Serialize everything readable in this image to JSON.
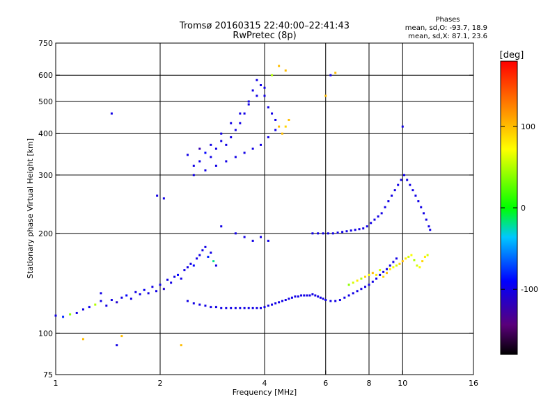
{
  "chart_data": {
    "type": "scatter",
    "title": "Tromsø 20160315 22:40:00–22:41:43",
    "subtitle": "RwPretec (8p)",
    "xlabel": "Frequency [MHz]",
    "ylabel": "Stationary phase Virtual Height [km]",
    "x_scale": "log",
    "y_scale": "log",
    "xlim": [
      1,
      16
    ],
    "ylim": [
      75,
      750
    ],
    "x_ticks": [
      1,
      2,
      4,
      6,
      8,
      10,
      16
    ],
    "x_tick_labels": [
      "1",
      "2",
      "4",
      "6",
      "8",
      "10",
      "16"
    ],
    "y_ticks": [
      75,
      100,
      200,
      300,
      400,
      500,
      600,
      750
    ],
    "y_tick_labels": [
      "75",
      "100",
      "200",
      "300",
      "400",
      "500",
      "600",
      "750"
    ],
    "grid_x": [
      2,
      4,
      6,
      8,
      10
    ],
    "grid_y": [
      100,
      200,
      300,
      400,
      500,
      600
    ],
    "legend": {
      "heading": "Phases",
      "lines": [
        "mean, sd,O: -93.7, 18.9",
        "mean, sd,X:  87.1, 23.6"
      ]
    },
    "colorbar": {
      "label": "[deg]",
      "min": -180,
      "max": 180,
      "ticks": [
        100,
        0,
        -100
      ],
      "tick_labels": [
        "100",
        "0",
        "-100"
      ],
      "colormap": "rainbow (black-purple-blue-cyan-green-yellow-red)"
    },
    "series": [
      {
        "trace": "low-frequency E/F1 trace",
        "points": [
          [
            1.0,
            113,
            -100
          ],
          [
            1.05,
            112,
            -80
          ],
          [
            1.1,
            114,
            40
          ],
          [
            1.15,
            115,
            -100
          ],
          [
            1.2,
            118,
            -100
          ],
          [
            1.25,
            120,
            -95
          ],
          [
            1.3,
            122,
            50
          ],
          [
            1.35,
            125,
            -100
          ],
          [
            1.4,
            121,
            -100
          ],
          [
            1.45,
            126,
            -100
          ],
          [
            1.5,
            124,
            -110
          ],
          [
            1.55,
            128,
            -100
          ],
          [
            1.6,
            130,
            -90
          ],
          [
            1.65,
            127,
            -100
          ],
          [
            1.7,
            133,
            -100
          ],
          [
            1.75,
            131,
            -100
          ],
          [
            1.8,
            135,
            -95
          ],
          [
            1.85,
            132,
            -100
          ],
          [
            1.9,
            138,
            -100
          ],
          [
            1.95,
            134,
            -100
          ],
          [
            2.0,
            140,
            -100
          ],
          [
            2.05,
            136,
            -110
          ],
          [
            2.1,
            145,
            -100
          ],
          [
            2.15,
            142,
            -100
          ],
          [
            2.2,
            148,
            -100
          ],
          [
            2.25,
            150,
            -90
          ],
          [
            2.3,
            146,
            -100
          ],
          [
            2.35,
            155,
            -100
          ],
          [
            2.4,
            158,
            -100
          ],
          [
            2.45,
            162,
            -100
          ],
          [
            2.5,
            160,
            -90
          ],
          [
            2.55,
            168,
            -100
          ],
          [
            2.6,
            172,
            -100
          ],
          [
            2.65,
            178,
            -100
          ],
          [
            2.7,
            182,
            -100
          ],
          [
            2.75,
            170,
            -80
          ],
          [
            2.8,
            175,
            -100
          ],
          [
            2.85,
            165,
            -20
          ],
          [
            2.9,
            160,
            -100
          ],
          [
            1.2,
            96,
            100
          ],
          [
            1.5,
            92,
            -100
          ],
          [
            1.55,
            98,
            100
          ],
          [
            2.3,
            92,
            100
          ],
          [
            1.35,
            132,
            -100
          ]
        ]
      },
      {
        "trace": "main F2 trace near 120 km",
        "points": [
          [
            2.4,
            125,
            -100
          ],
          [
            2.5,
            123,
            -100
          ],
          [
            2.6,
            122,
            -100
          ],
          [
            2.7,
            121,
            -100
          ],
          [
            2.8,
            120,
            -100
          ],
          [
            2.9,
            120,
            -100
          ],
          [
            3.0,
            119,
            -100
          ],
          [
            3.1,
            119,
            -100
          ],
          [
            3.2,
            119,
            -100
          ],
          [
            3.3,
            119,
            -100
          ],
          [
            3.4,
            119,
            -100
          ],
          [
            3.5,
            119,
            -100
          ],
          [
            3.6,
            119,
            -100
          ],
          [
            3.7,
            119,
            -100
          ],
          [
            3.8,
            119,
            -100
          ],
          [
            3.9,
            119,
            -100
          ],
          [
            4.0,
            120,
            -100
          ],
          [
            4.1,
            121,
            -100
          ],
          [
            4.2,
            122,
            -100
          ],
          [
            4.3,
            123,
            -100
          ],
          [
            4.4,
            124,
            -100
          ],
          [
            4.5,
            125,
            -100
          ],
          [
            4.6,
            126,
            -100
          ],
          [
            4.7,
            127,
            -100
          ],
          [
            4.8,
            128,
            -100
          ],
          [
            4.9,
            129,
            -100
          ],
          [
            5.0,
            129,
            -100
          ],
          [
            5.1,
            130,
            -100
          ],
          [
            5.2,
            130,
            -100
          ],
          [
            5.3,
            130,
            -100
          ],
          [
            5.4,
            130,
            -100
          ],
          [
            5.5,
            131,
            -100
          ],
          [
            5.6,
            130,
            -100
          ],
          [
            5.7,
            129,
            -100
          ],
          [
            5.8,
            128,
            -100
          ],
          [
            5.9,
            127,
            -100
          ],
          [
            6.0,
            126,
            -100
          ],
          [
            6.2,
            125,
            -100
          ],
          [
            6.4,
            125,
            -100
          ],
          [
            6.6,
            126,
            -100
          ],
          [
            6.8,
            128,
            -100
          ],
          [
            7.0,
            130,
            -100
          ],
          [
            7.2,
            132,
            -100
          ],
          [
            7.4,
            134,
            -100
          ],
          [
            7.6,
            136,
            -100
          ],
          [
            7.8,
            138,
            -100
          ],
          [
            8.0,
            140,
            -100
          ],
          [
            8.2,
            143,
            -100
          ],
          [
            8.4,
            146,
            -100
          ],
          [
            8.6,
            150,
            -100
          ],
          [
            8.8,
            153,
            -100
          ],
          [
            9.0,
            156,
            -100
          ],
          [
            9.2,
            160,
            -100
          ],
          [
            9.4,
            164,
            -100
          ],
          [
            9.6,
            168,
            -100
          ]
        ]
      },
      {
        "trace": "X-mode trace (greenish-yellow)",
        "points": [
          [
            7.0,
            140,
            40
          ],
          [
            7.2,
            142,
            60
          ],
          [
            7.4,
            144,
            80
          ],
          [
            7.6,
            146,
            50
          ],
          [
            7.8,
            148,
            90
          ],
          [
            8.0,
            150,
            70
          ],
          [
            8.2,
            152,
            100
          ],
          [
            8.4,
            150,
            80
          ],
          [
            8.6,
            155,
            60
          ],
          [
            8.8,
            148,
            90
          ],
          [
            9.0,
            152,
            100
          ],
          [
            9.2,
            156,
            80
          ],
          [
            9.4,
            158,
            70
          ],
          [
            9.6,
            160,
            60
          ],
          [
            9.8,
            162,
            90
          ],
          [
            10.0,
            165,
            100
          ],
          [
            10.2,
            168,
            80
          ],
          [
            10.4,
            170,
            60
          ],
          [
            10.6,
            172,
            70
          ],
          [
            10.8,
            166,
            50
          ],
          [
            11.0,
            160,
            60
          ],
          [
            11.2,
            158,
            70
          ],
          [
            11.4,
            165,
            90
          ],
          [
            11.6,
            170,
            80
          ],
          [
            11.8,
            172,
            60
          ]
        ]
      },
      {
        "trace": "upper F2 cusp near 200 km",
        "points": [
          [
            5.5,
            200,
            -100
          ],
          [
            5.7,
            200,
            -100
          ],
          [
            5.9,
            200,
            -100
          ],
          [
            6.1,
            200,
            -100
          ],
          [
            6.3,
            200,
            -100
          ],
          [
            6.5,
            201,
            -100
          ],
          [
            6.7,
            202,
            -100
          ],
          [
            6.9,
            203,
            -100
          ],
          [
            7.1,
            204,
            -100
          ],
          [
            7.3,
            205,
            -100
          ],
          [
            7.5,
            206,
            -100
          ],
          [
            7.7,
            207,
            -100
          ],
          [
            7.9,
            210,
            -100
          ],
          [
            8.1,
            215,
            -100
          ],
          [
            8.3,
            220,
            -100
          ],
          [
            8.5,
            225,
            -100
          ],
          [
            8.7,
            230,
            -100
          ],
          [
            8.9,
            240,
            -100
          ],
          [
            9.1,
            250,
            -100
          ],
          [
            9.3,
            260,
            -100
          ],
          [
            9.5,
            270,
            -100
          ],
          [
            9.7,
            280,
            -100
          ],
          [
            9.9,
            290,
            -100
          ],
          [
            10.1,
            300,
            -100
          ],
          [
            10.3,
            290,
            -100
          ],
          [
            10.5,
            280,
            -100
          ],
          [
            10.7,
            270,
            -100
          ],
          [
            10.9,
            260,
            -100
          ],
          [
            11.1,
            250,
            -100
          ],
          [
            11.3,
            240,
            -100
          ],
          [
            11.5,
            230,
            -100
          ],
          [
            11.7,
            220,
            -100
          ],
          [
            11.9,
            210,
            -100
          ],
          [
            12.0,
            205,
            -100
          ],
          [
            3.0,
            210,
            -100
          ],
          [
            3.3,
            200,
            -100
          ],
          [
            3.5,
            195,
            -100
          ],
          [
            3.7,
            190,
            -100
          ],
          [
            3.9,
            195,
            -100
          ],
          [
            4.1,
            190,
            -100
          ]
        ]
      },
      {
        "trace": "high-altitude F cluster",
        "points": [
          [
            2.4,
            345,
            -100
          ],
          [
            2.5,
            320,
            -100
          ],
          [
            2.6,
            330,
            -100
          ],
          [
            2.7,
            350,
            -90
          ],
          [
            2.8,
            340,
            -100
          ],
          [
            2.9,
            360,
            -100
          ],
          [
            3.0,
            380,
            -100
          ],
          [
            3.1,
            370,
            -100
          ],
          [
            3.2,
            390,
            -100
          ],
          [
            3.3,
            410,
            -100
          ],
          [
            3.4,
            430,
            -100
          ],
          [
            3.5,
            460,
            -100
          ],
          [
            3.6,
            500,
            -100
          ],
          [
            3.7,
            540,
            -100
          ],
          [
            3.8,
            580,
            -100
          ],
          [
            3.9,
            560,
            -100
          ],
          [
            4.0,
            520,
            -100
          ],
          [
            4.1,
            480,
            -100
          ],
          [
            4.2,
            460,
            -100
          ],
          [
            4.3,
            440,
            -100
          ],
          [
            4.4,
            420,
            100
          ],
          [
            4.5,
            400,
            100
          ],
          [
            4.6,
            420,
            90
          ],
          [
            4.7,
            440,
            100
          ],
          [
            2.5,
            300,
            -100
          ],
          [
            2.7,
            310,
            -100
          ],
          [
            2.9,
            320,
            -100
          ],
          [
            3.1,
            330,
            -100
          ],
          [
            3.3,
            340,
            -100
          ],
          [
            3.5,
            350,
            -100
          ],
          [
            3.7,
            360,
            -100
          ],
          [
            3.9,
            370,
            -100
          ],
          [
            4.1,
            390,
            -100
          ],
          [
            4.3,
            410,
            -100
          ],
          [
            2.6,
            360,
            -120
          ],
          [
            2.8,
            370,
            -100
          ],
          [
            3.0,
            400,
            -100
          ],
          [
            3.2,
            430,
            -100
          ],
          [
            3.4,
            460,
            -100
          ],
          [
            3.6,
            490,
            -100
          ],
          [
            3.8,
            520,
            -100
          ],
          [
            4.0,
            550,
            -100
          ],
          [
            4.2,
            600,
            50
          ],
          [
            4.4,
            640,
            100
          ],
          [
            4.6,
            620,
            100
          ],
          [
            6.2,
            600,
            -100
          ],
          [
            6.4,
            610,
            100
          ],
          [
            6.0,
            520,
            100
          ],
          [
            10.0,
            420,
            -100
          ],
          [
            1.45,
            460,
            -100
          ],
          [
            1.96,
            260,
            -100
          ],
          [
            2.05,
            255,
            -100
          ]
        ]
      }
    ]
  }
}
